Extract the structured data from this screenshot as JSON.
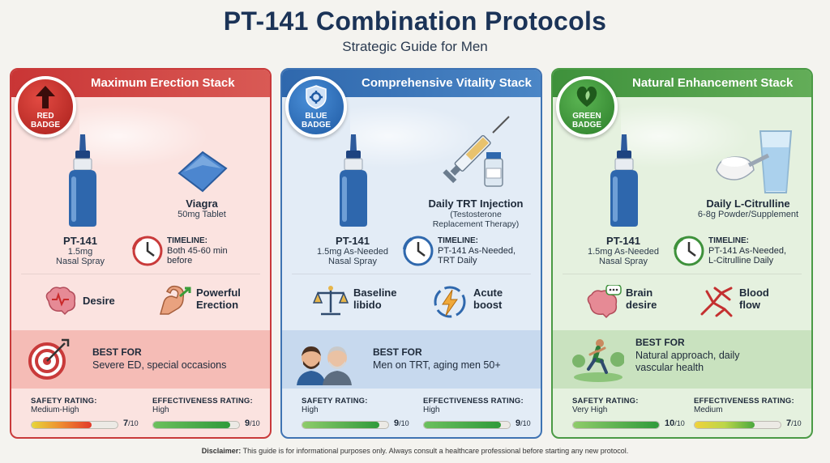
{
  "header": {
    "title": "PT-141 Combination Protocols",
    "subtitle": "Strategic Guide for Men"
  },
  "cards": [
    {
      "theme": "red",
      "header": "Maximum Erection Stack",
      "badge_icon": "up-arrow-icon",
      "badge_line1": "RED",
      "badge_line2": "BADGE",
      "pt141_title": "PT-141",
      "pt141_dose": "1.5mg",
      "pt141_form": "Nasal Spray",
      "companion_title": "Viagra",
      "companion_sub": "50mg Tablet",
      "companion_sub2": "",
      "timeline_head": "TIMELINE:",
      "timeline_line1": "Both 45-60 min",
      "timeline_line2": "before",
      "benefit1_line1": "Desire",
      "benefit1_line2": "",
      "benefit1_icon": "brain-icon",
      "benefit2_line1": "Powerful",
      "benefit2_line2": "Erection",
      "benefit2_icon": "flexed-arm-icon",
      "best_for_head": "BEST FOR",
      "best_for_line1": "Severe ED, special occasions",
      "best_for_line2": "",
      "best_icon": "target-icon",
      "safety_label": "SAFETY RATING:",
      "safety_value": "Medium-High",
      "safety_score": "7",
      "safety_fill": 0.7,
      "effectiveness_label": "EFFECTIVENESS RATING:",
      "effectiveness_value": "High",
      "effectiveness_score": "9",
      "effectiveness_fill": 0.9,
      "score_max": "/10",
      "colors": {
        "accent": "#c93a3a"
      }
    },
    {
      "theme": "blue",
      "header": "Comprehensive Vitality Stack",
      "badge_icon": "shield-gear-icon",
      "badge_line1": "BLUE",
      "badge_line2": "BADGE",
      "pt141_title": "PT-141",
      "pt141_dose": "1.5mg As-Needed",
      "pt141_form": "Nasal Spray",
      "companion_title": "Daily TRT Injection",
      "companion_sub": "(Testosterone",
      "companion_sub2": "Replacement Therapy)",
      "timeline_head": "TIMELINE:",
      "timeline_line1": "PT-141 As-Needed,",
      "timeline_line2": "TRT Daily",
      "benefit1_line1": "Baseline",
      "benefit1_line2": "libido",
      "benefit1_icon": "balance-scale-icon",
      "benefit2_line1": "Acute",
      "benefit2_line2": "boost",
      "benefit2_icon": "lightning-icon",
      "best_for_head": "BEST FOR",
      "best_for_line1": "Men on TRT, aging men 50+",
      "best_for_line2": "",
      "best_icon": "two-men-icon",
      "safety_label": "SAFETY RATING:",
      "safety_value": "High",
      "safety_score": "9",
      "safety_fill": 0.9,
      "effectiveness_label": "EFFECTIVENESS RATING:",
      "effectiveness_value": "High",
      "effectiveness_score": "9",
      "effectiveness_fill": 0.9,
      "score_max": "/10",
      "colors": {
        "accent": "#3f73b3"
      }
    },
    {
      "theme": "green",
      "header": "Natural Enhancement Stack",
      "badge_icon": "heart-leaf-icon",
      "badge_line1": "GREEN",
      "badge_line2": "BADGE",
      "pt141_title": "PT-141",
      "pt141_dose": "1.5mg As-Needed",
      "pt141_form": "Nasal Spray",
      "companion_title": "Daily L-Citrulline",
      "companion_sub": "6-8g Powder/Supplement",
      "companion_sub2": "",
      "timeline_head": "TIMELINE:",
      "timeline_line1": "PT-141 As-Needed,",
      "timeline_line2": "L-Citrulline Daily",
      "benefit1_line1": "Brain",
      "benefit1_line2": "desire",
      "benefit1_icon": "brain-speech-icon",
      "benefit2_line1": "Blood",
      "benefit2_line2": "flow",
      "benefit2_icon": "blood-vessels-icon",
      "best_for_head": "BEST FOR",
      "best_for_line1": "Natural approach, daily",
      "best_for_line2": "vascular health",
      "best_icon": "runner-icon",
      "safety_label": "SAFETY RATING:",
      "safety_value": "Very High",
      "safety_score": "10",
      "safety_fill": 1.0,
      "effectiveness_label": "EFFECTIVENESS RATING:",
      "effectiveness_value": "Medium",
      "effectiveness_score": "7",
      "effectiveness_fill": 0.7,
      "score_max": "/10",
      "colors": {
        "accent": "#4a9a45"
      }
    }
  ],
  "disclaimer": {
    "label": "Disclaimer:",
    "text": "This guide is for informational purposes only. Always consult a healthcare professional before starting any new protocol."
  }
}
